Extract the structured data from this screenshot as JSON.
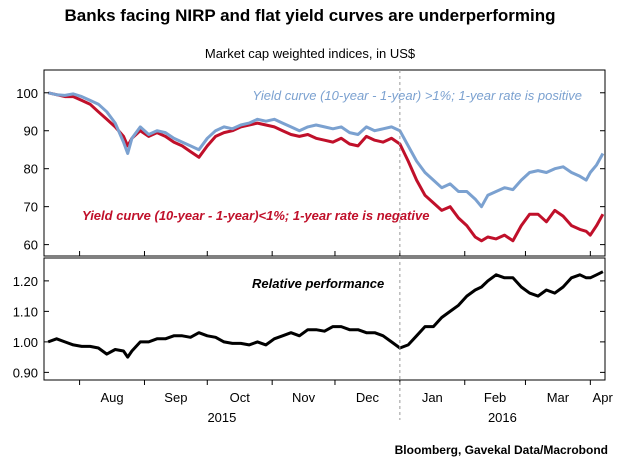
{
  "title": "Banks facing NIRP and flat yield curves are underperforming",
  "subtitle": "Market cap weighted indices, in US$",
  "source": "Bloomberg, Gavekal Data/Macrobond",
  "colors": {
    "blue": "#7ba1d0",
    "red": "#c0102a",
    "black": "#000000"
  },
  "chart_data": [
    {
      "type": "line",
      "panel": "top",
      "x_months": [
        "Aug",
        "Sep",
        "Oct",
        "Nov",
        "Dec",
        "Jan",
        "Feb",
        "Mar",
        "Apr"
      ],
      "x_years": [
        "2015",
        "2016"
      ],
      "x_range": [
        "2015-07-15",
        "2016-04-08"
      ],
      "ylim": [
        57,
        106
      ],
      "yticks": [
        60,
        70,
        80,
        90,
        100
      ],
      "series": [
        {
          "name": "Yield curve (10-year - 1-year) >1%; 1-year rate is positive",
          "color": "#7ba1d0",
          "points": [
            [
              "2015-07-17",
              100.0
            ],
            [
              "2015-07-21",
              99.5
            ],
            [
              "2015-07-25",
              99.3
            ],
            [
              "2015-07-29",
              99.7
            ],
            [
              "2015-08-02",
              99.0
            ],
            [
              "2015-08-06",
              98.0
            ],
            [
              "2015-08-10",
              97.0
            ],
            [
              "2015-08-14",
              95.0
            ],
            [
              "2015-08-18",
              92.0
            ],
            [
              "2015-08-22",
              87.0
            ],
            [
              "2015-08-24",
              84.0
            ],
            [
              "2015-08-26",
              88.0
            ],
            [
              "2015-08-30",
              91.0
            ],
            [
              "2015-09-03",
              89.0
            ],
            [
              "2015-09-07",
              90.0
            ],
            [
              "2015-09-11",
              89.5
            ],
            [
              "2015-09-15",
              88.0
            ],
            [
              "2015-09-19",
              87.0
            ],
            [
              "2015-09-23",
              86.0
            ],
            [
              "2015-09-27",
              85.0
            ],
            [
              "2015-10-01",
              88.0
            ],
            [
              "2015-10-05",
              90.0
            ],
            [
              "2015-10-09",
              91.0
            ],
            [
              "2015-10-13",
              90.5
            ],
            [
              "2015-10-17",
              91.5
            ],
            [
              "2015-10-21",
              92.0
            ],
            [
              "2015-10-25",
              93.0
            ],
            [
              "2015-10-29",
              92.5
            ],
            [
              "2015-11-02",
              93.0
            ],
            [
              "2015-11-06",
              92.0
            ],
            [
              "2015-11-10",
              91.0
            ],
            [
              "2015-11-14",
              90.0
            ],
            [
              "2015-11-18",
              91.0
            ],
            [
              "2015-11-22",
              91.5
            ],
            [
              "2015-11-26",
              91.0
            ],
            [
              "2015-11-30",
              90.5
            ],
            [
              "2015-12-04",
              91.0
            ],
            [
              "2015-12-08",
              89.5
            ],
            [
              "2015-12-12",
              89.0
            ],
            [
              "2015-12-16",
              91.0
            ],
            [
              "2015-12-20",
              90.0
            ],
            [
              "2015-12-24",
              90.5
            ],
            [
              "2015-12-28",
              91.0
            ],
            [
              "2016-01-01",
              90.0
            ],
            [
              "2016-01-05",
              86.0
            ],
            [
              "2016-01-09",
              82.0
            ],
            [
              "2016-01-13",
              79.0
            ],
            [
              "2016-01-17",
              77.0
            ],
            [
              "2016-01-21",
              75.0
            ],
            [
              "2016-01-25",
              76.0
            ],
            [
              "2016-01-29",
              74.0
            ],
            [
              "2016-02-02",
              74.0
            ],
            [
              "2016-02-06",
              72.0
            ],
            [
              "2016-02-09",
              70.0
            ],
            [
              "2016-02-12",
              73.0
            ],
            [
              "2016-02-16",
              74.0
            ],
            [
              "2016-02-20",
              75.0
            ],
            [
              "2016-02-24",
              74.5
            ],
            [
              "2016-02-28",
              77.0
            ],
            [
              "2016-03-03",
              79.0
            ],
            [
              "2016-03-07",
              79.5
            ],
            [
              "2016-03-11",
              79.0
            ],
            [
              "2016-03-15",
              80.0
            ],
            [
              "2016-03-19",
              80.5
            ],
            [
              "2016-03-23",
              79.0
            ],
            [
              "2016-03-27",
              78.0
            ],
            [
              "2016-03-30",
              77.0
            ],
            [
              "2016-04-01",
              79.0
            ],
            [
              "2016-04-04",
              81.0
            ],
            [
              "2016-04-07",
              84.0
            ]
          ]
        },
        {
          "name": "Yield curve (10-year - 1-year)<1%; 1-year rate is negative",
          "color": "#c0102a",
          "points": [
            [
              "2015-07-17",
              100.0
            ],
            [
              "2015-07-21",
              99.5
            ],
            [
              "2015-07-25",
              99.0
            ],
            [
              "2015-07-29",
              99.0
            ],
            [
              "2015-08-02",
              98.0
            ],
            [
              "2015-08-06",
              97.0
            ],
            [
              "2015-08-10",
              95.0
            ],
            [
              "2015-08-14",
              93.0
            ],
            [
              "2015-08-18",
              91.0
            ],
            [
              "2015-08-22",
              88.5
            ],
            [
              "2015-08-24",
              86.0
            ],
            [
              "2015-08-26",
              88.0
            ],
            [
              "2015-08-30",
              90.0
            ],
            [
              "2015-09-03",
              88.5
            ],
            [
              "2015-09-07",
              89.5
            ],
            [
              "2015-09-11",
              88.5
            ],
            [
              "2015-09-15",
              87.0
            ],
            [
              "2015-09-19",
              86.0
            ],
            [
              "2015-09-23",
              84.5
            ],
            [
              "2015-09-27",
              83.0
            ],
            [
              "2015-10-01",
              86.0
            ],
            [
              "2015-10-05",
              88.5
            ],
            [
              "2015-10-09",
              89.5
            ],
            [
              "2015-10-13",
              90.0
            ],
            [
              "2015-10-17",
              91.0
            ],
            [
              "2015-10-21",
              91.5
            ],
            [
              "2015-10-25",
              92.0
            ],
            [
              "2015-10-29",
              91.5
            ],
            [
              "2015-11-02",
              91.0
            ],
            [
              "2015-11-06",
              90.0
            ],
            [
              "2015-11-10",
              89.0
            ],
            [
              "2015-11-14",
              88.5
            ],
            [
              "2015-11-18",
              89.0
            ],
            [
              "2015-11-22",
              88.0
            ],
            [
              "2015-11-26",
              87.5
            ],
            [
              "2015-11-30",
              87.0
            ],
            [
              "2015-12-04",
              88.0
            ],
            [
              "2015-12-08",
              86.5
            ],
            [
              "2015-12-12",
              86.0
            ],
            [
              "2015-12-16",
              88.5
            ],
            [
              "2015-12-20",
              87.5
            ],
            [
              "2015-12-24",
              87.0
            ],
            [
              "2015-12-28",
              88.0
            ],
            [
              "2016-01-01",
              86.5
            ],
            [
              "2016-01-05",
              82.0
            ],
            [
              "2016-01-09",
              77.0
            ],
            [
              "2016-01-13",
              73.0
            ],
            [
              "2016-01-17",
              71.0
            ],
            [
              "2016-01-21",
              69.0
            ],
            [
              "2016-01-25",
              70.0
            ],
            [
              "2016-01-29",
              67.0
            ],
            [
              "2016-02-02",
              65.0
            ],
            [
              "2016-02-06",
              62.0
            ],
            [
              "2016-02-09",
              61.0
            ],
            [
              "2016-02-12",
              62.0
            ],
            [
              "2016-02-16",
              61.5
            ],
            [
              "2016-02-20",
              62.5
            ],
            [
              "2016-02-24",
              61.0
            ],
            [
              "2016-02-28",
              65.0
            ],
            [
              "2016-03-03",
              68.0
            ],
            [
              "2016-03-07",
              68.0
            ],
            [
              "2016-03-11",
              66.0
            ],
            [
              "2016-03-15",
              69.0
            ],
            [
              "2016-03-19",
              67.5
            ],
            [
              "2016-03-23",
              65.0
            ],
            [
              "2016-03-27",
              64.0
            ],
            [
              "2016-03-30",
              63.5
            ],
            [
              "2016-04-01",
              62.5
            ],
            [
              "2016-04-04",
              65.0
            ],
            [
              "2016-04-07",
              68.0
            ]
          ]
        }
      ],
      "annotations": [
        {
          "text": "Yield curve (10-year - 1-year) >1%; 1-year rate is positive",
          "color": "#7ba1d0"
        },
        {
          "text": "Yield curve (10-year - 1-year)<1%; 1-year rate is negative",
          "color": "#c0102a"
        }
      ]
    },
    {
      "type": "line",
      "panel": "bottom",
      "ylim": [
        0.875,
        1.275
      ],
      "yticks": [
        0.9,
        1.0,
        1.1,
        1.2
      ],
      "ytick_labels": [
        "0.90",
        "1.00",
        "1.10",
        "1.20"
      ],
      "series": [
        {
          "name": "Relative performance",
          "color": "#000000",
          "points": [
            [
              "2015-07-17",
              1.0
            ],
            [
              "2015-07-21",
              1.01
            ],
            [
              "2015-07-25",
              1.0
            ],
            [
              "2015-07-29",
              0.99
            ],
            [
              "2015-08-02",
              0.985
            ],
            [
              "2015-08-06",
              0.985
            ],
            [
              "2015-08-10",
              0.98
            ],
            [
              "2015-08-14",
              0.96
            ],
            [
              "2015-08-18",
              0.975
            ],
            [
              "2015-08-22",
              0.97
            ],
            [
              "2015-08-24",
              0.95
            ],
            [
              "2015-08-26",
              0.97
            ],
            [
              "2015-08-30",
              1.0
            ],
            [
              "2015-09-03",
              1.0
            ],
            [
              "2015-09-07",
              1.01
            ],
            [
              "2015-09-11",
              1.01
            ],
            [
              "2015-09-15",
              1.02
            ],
            [
              "2015-09-19",
              1.02
            ],
            [
              "2015-09-23",
              1.015
            ],
            [
              "2015-09-27",
              1.03
            ],
            [
              "2015-10-01",
              1.02
            ],
            [
              "2015-10-05",
              1.015
            ],
            [
              "2015-10-09",
              1.0
            ],
            [
              "2015-10-13",
              0.995
            ],
            [
              "2015-10-17",
              0.995
            ],
            [
              "2015-10-21",
              0.99
            ],
            [
              "2015-10-25",
              1.0
            ],
            [
              "2015-10-29",
              0.99
            ],
            [
              "2015-11-02",
              1.01
            ],
            [
              "2015-11-06",
              1.02
            ],
            [
              "2015-11-10",
              1.03
            ],
            [
              "2015-11-14",
              1.02
            ],
            [
              "2015-11-18",
              1.04
            ],
            [
              "2015-11-22",
              1.04
            ],
            [
              "2015-11-26",
              1.035
            ],
            [
              "2015-11-30",
              1.05
            ],
            [
              "2015-12-04",
              1.05
            ],
            [
              "2015-12-08",
              1.04
            ],
            [
              "2015-12-12",
              1.04
            ],
            [
              "2015-12-16",
              1.03
            ],
            [
              "2015-12-20",
              1.03
            ],
            [
              "2015-12-24",
              1.02
            ],
            [
              "2015-12-28",
              1.0
            ],
            [
              "2016-01-01",
              0.98
            ],
            [
              "2016-01-05",
              0.99
            ],
            [
              "2016-01-09",
              1.02
            ],
            [
              "2016-01-13",
              1.05
            ],
            [
              "2016-01-17",
              1.05
            ],
            [
              "2016-01-21",
              1.08
            ],
            [
              "2016-01-25",
              1.1
            ],
            [
              "2016-01-29",
              1.12
            ],
            [
              "2016-02-02",
              1.15
            ],
            [
              "2016-02-06",
              1.17
            ],
            [
              "2016-02-09",
              1.18
            ],
            [
              "2016-02-12",
              1.2
            ],
            [
              "2016-02-16",
              1.22
            ],
            [
              "2016-02-20",
              1.21
            ],
            [
              "2016-02-24",
              1.21
            ],
            [
              "2016-02-28",
              1.18
            ],
            [
              "2016-03-03",
              1.16
            ],
            [
              "2016-03-07",
              1.15
            ],
            [
              "2016-03-11",
              1.17
            ],
            [
              "2016-03-15",
              1.16
            ],
            [
              "2016-03-19",
              1.18
            ],
            [
              "2016-03-23",
              1.21
            ],
            [
              "2016-03-27",
              1.22
            ],
            [
              "2016-03-30",
              1.21
            ],
            [
              "2016-04-01",
              1.21
            ],
            [
              "2016-04-04",
              1.22
            ],
            [
              "2016-04-07",
              1.23
            ]
          ]
        }
      ],
      "annotations": [
        {
          "text": "Relative performance",
          "color": "#000000"
        }
      ]
    }
  ]
}
